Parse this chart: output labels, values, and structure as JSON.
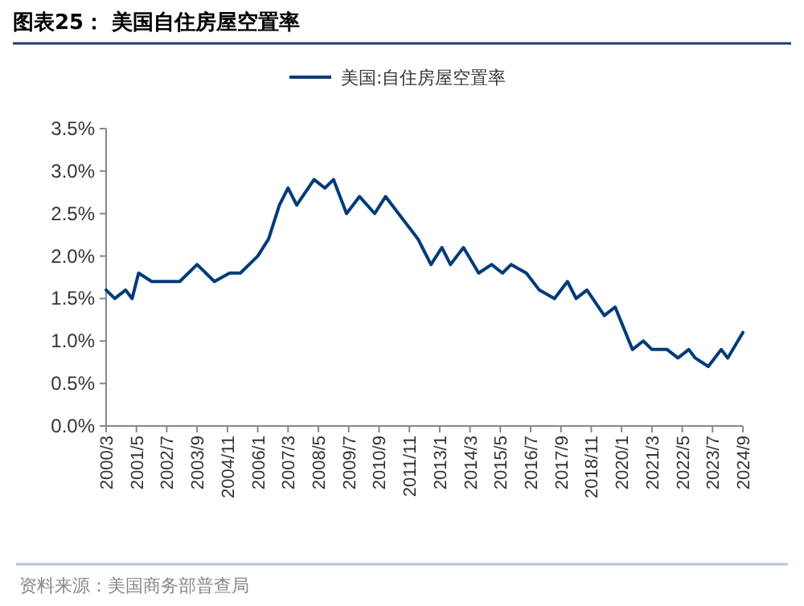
{
  "chart_data": {
    "type": "line",
    "title": "图表25：  美国自住房屋空置率",
    "x": [
      "2000-03",
      "2000-07",
      "2000-12",
      "2001-03",
      "2001-06",
      "2001-12",
      "2002-06",
      "2003-01",
      "2003-09",
      "2004-05",
      "2004-12",
      "2005-05",
      "2006-01",
      "2006-06",
      "2006-11",
      "2007-03",
      "2007-07",
      "2008-03",
      "2008-08",
      "2008-12",
      "2009-06",
      "2009-12",
      "2010-07",
      "2010-12",
      "2012-03",
      "2012-05",
      "2012-09",
      "2013-02",
      "2013-06",
      "2013-12",
      "2014-07",
      "2015-01",
      "2015-06",
      "2015-10",
      "2016-05",
      "2016-11",
      "2017-06",
      "2017-12",
      "2018-04",
      "2018-09",
      "2019-05",
      "2019-10",
      "2020-06",
      "2020-11",
      "2021-03",
      "2021-10",
      "2022-03",
      "2022-08",
      "2022-11",
      "2023-05",
      "2023-11",
      "2024-02",
      "2024-09"
    ],
    "series": [
      {
        "name": "美国:自住房屋空置率",
        "color": "#003b7a",
        "values": [
          1.6,
          1.5,
          1.6,
          1.5,
          1.8,
          1.7,
          1.7,
          1.7,
          1.9,
          1.7,
          1.8,
          1.8,
          2.0,
          2.2,
          2.6,
          2.8,
          2.6,
          2.9,
          2.8,
          2.9,
          2.5,
          2.7,
          2.5,
          2.7,
          2.2,
          2.1,
          1.9,
          2.1,
          1.9,
          2.1,
          1.8,
          1.9,
          1.8,
          1.9,
          1.8,
          1.6,
          1.5,
          1.7,
          1.5,
          1.6,
          1.3,
          1.4,
          0.9,
          1.0,
          0.9,
          0.9,
          0.8,
          0.9,
          0.8,
          0.7,
          0.9,
          0.8,
          1.1
        ]
      }
    ],
    "xlim": [
      "2000-03",
      "2024-09"
    ],
    "xticks": [
      {
        "value": "2000-03",
        "label": "2000/3"
      },
      {
        "value": "2001-05",
        "label": "2001/5"
      },
      {
        "value": "2002-07",
        "label": "2002/7"
      },
      {
        "value": "2003-09",
        "label": "2003/9"
      },
      {
        "value": "2004-11",
        "label": "2004/11"
      },
      {
        "value": "2006-01",
        "label": "2006/1"
      },
      {
        "value": "2007-03",
        "label": "2007/3"
      },
      {
        "value": "2008-05",
        "label": "2008/5"
      },
      {
        "value": "2009-07",
        "label": "2009/7"
      },
      {
        "value": "2010-09",
        "label": "2010/9"
      },
      {
        "value": "2011-11",
        "label": "2011/11"
      },
      {
        "value": "2013-01",
        "label": "2013/1"
      },
      {
        "value": "2014-03",
        "label": "2014/3"
      },
      {
        "value": "2015-05",
        "label": "2015/5"
      },
      {
        "value": "2016-07",
        "label": "2016/7"
      },
      {
        "value": "2017-09",
        "label": "2017/9"
      },
      {
        "value": "2018-11",
        "label": "2018/11"
      },
      {
        "value": "2020-01",
        "label": "2020/1"
      },
      {
        "value": "2021-03",
        "label": "2021/3"
      },
      {
        "value": "2022-05",
        "label": "2022/5"
      },
      {
        "value": "2023-07",
        "label": "2023/7"
      },
      {
        "value": "2024-09",
        "label": "2024/9"
      }
    ],
    "ylim": [
      0,
      3.5
    ],
    "yticks": [
      {
        "value": 0,
        "label": "0.0%"
      },
      {
        "value": 0.5,
        "label": "0.5%"
      },
      {
        "value": 1,
        "label": "1.0%"
      },
      {
        "value": 1.5,
        "label": "1.5%"
      },
      {
        "value": 2,
        "label": "2.0%"
      },
      {
        "value": 2.5,
        "label": "2.5%"
      },
      {
        "value": 3,
        "label": "3.0%"
      },
      {
        "value": 3.5,
        "label": "3.5%"
      }
    ],
    "legend": "top",
    "grid": false,
    "marker": "none",
    "line_style": "solid",
    "annotations": [
      "资料来源：美国商务部普查局"
    ]
  }
}
